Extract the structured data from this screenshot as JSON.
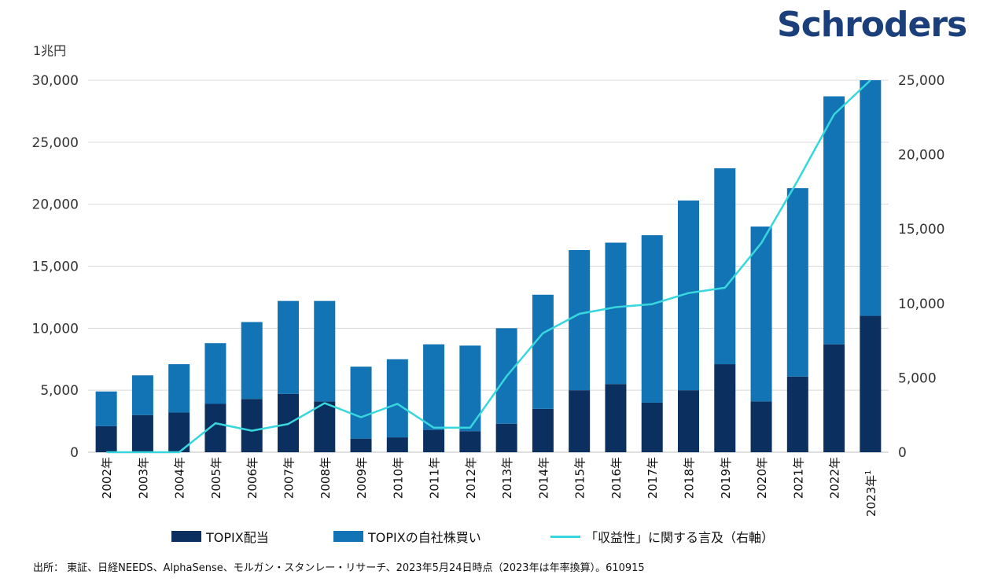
{
  "logo": "Schroders",
  "unit_label": "1兆円",
  "source_note": "出所： 東証、日経NEEDS、AlphaSense、モルガン・スタンレー・リサーチ、2023年5月24日時点（2023年は年率換算）。610915",
  "chart_data": {
    "type": "bar",
    "stacked": true,
    "categories": [
      "2002年",
      "2003年",
      "2004年",
      "2005年",
      "2006年",
      "2007年",
      "2008年",
      "2009年",
      "2010年",
      "2011年",
      "2012年",
      "2013年",
      "2014年",
      "2015年",
      "2016年",
      "2017年",
      "2018年",
      "2019年",
      "2020年",
      "2021年",
      "2022年",
      "2023年"
    ],
    "last_category_superscript": "1",
    "series": [
      {
        "name": "TOPIX配当",
        "color": "#0b2f5e",
        "axis": "left",
        "values": [
          2100,
          3000,
          3200,
          3900,
          4300,
          4700,
          4100,
          1100,
          1200,
          1800,
          1700,
          2300,
          3500,
          5000,
          5500,
          4000,
          5000,
          7100,
          4100,
          6100,
          8700,
          11000
        ]
      },
      {
        "name": "TOPIXの自社株買い",
        "color": "#1273b5",
        "axis": "left",
        "values": [
          2800,
          3200,
          3900,
          4900,
          6200,
          7500,
          8100,
          5800,
          6300,
          6900,
          6900,
          7700,
          9200,
          11300,
          11400,
          13500,
          15300,
          15800,
          14100,
          15200,
          20000,
          19000
        ]
      },
      {
        "name": "「収益性」に関する言及（右軸）",
        "color": "#38d7dd",
        "axis": "right",
        "type": "line",
        "values": [
          0,
          0,
          0,
          1950,
          1450,
          1900,
          3300,
          2350,
          3250,
          1650,
          1650,
          5100,
          8000,
          9300,
          9750,
          9950,
          10700,
          11050,
          14050,
          18250,
          22700,
          25000
        ]
      }
    ],
    "left_axis": {
      "min": 0,
      "max": 30000,
      "ticks": [
        "0",
        "5,000",
        "10,000",
        "15,000",
        "20,000",
        "25,000",
        "30,000"
      ]
    },
    "right_axis": {
      "min": 0,
      "max": 25000,
      "ticks": [
        "0",
        "5,000",
        "10,000",
        "15,000",
        "20,000",
        "25,000"
      ]
    },
    "grid": true,
    "legend": [
      "TOPIX配当",
      "TOPIXの自社株買い",
      "「収益性」に関する言及（右軸）"
    ]
  },
  "colors": {
    "logo": "#1b3f7a",
    "grid": "#d9d9d9"
  }
}
